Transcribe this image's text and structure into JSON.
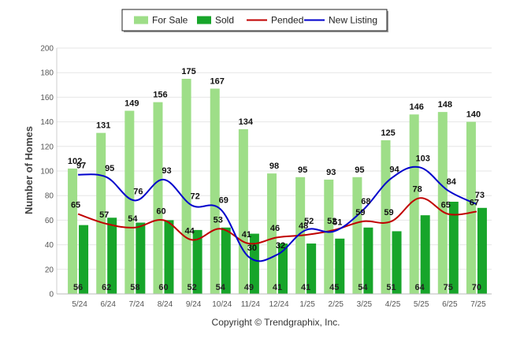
{
  "chart_data": {
    "type": "bar",
    "ylabel": "Number of Homes",
    "ylim": [
      0,
      200
    ],
    "yticks": [
      0,
      20,
      40,
      60,
      80,
      100,
      120,
      140,
      160,
      180,
      200
    ],
    "categories": [
      "5/24",
      "6/24",
      "7/24",
      "8/24",
      "9/24",
      "10/24",
      "11/24",
      "12/24",
      "1/25",
      "2/25",
      "3/25",
      "4/25",
      "5/25",
      "6/25",
      "7/25"
    ],
    "legend": {
      "placement": "top",
      "items": [
        {
          "label": "For Sale",
          "kind": "bar"
        },
        {
          "label": "Sold",
          "kind": "bar"
        },
        {
          "label": "Pended",
          "kind": "line"
        },
        {
          "label": "New Listing",
          "kind": "line"
        }
      ]
    },
    "series": [
      {
        "name": "For Sale",
        "kind": "bar",
        "color": "#9ede88",
        "values": [
          102,
          131,
          149,
          156,
          175,
          167,
          134,
          98,
          95,
          93,
          95,
          125,
          146,
          148,
          140
        ]
      },
      {
        "name": "Sold",
        "kind": "bar",
        "color": "#17a52a",
        "values": [
          56,
          62,
          58,
          60,
          52,
          54,
          49,
          41,
          41,
          45,
          54,
          51,
          64,
          75,
          70
        ]
      },
      {
        "name": "Pended",
        "kind": "line",
        "color": "#c00000",
        "values": [
          65,
          57,
          54,
          60,
          44,
          53,
          41,
          46,
          48,
          52,
          59,
          59,
          78,
          65,
          67
        ]
      },
      {
        "name": "New Listing",
        "kind": "line",
        "color": "#0000cc",
        "values": [
          97,
          95,
          76,
          93,
          72,
          69,
          30,
          32,
          52,
          51,
          68,
          94,
          103,
          84,
          73
        ]
      }
    ],
    "grid": true
  },
  "footer": {
    "copyright": "Copyright © Trendgraphix, Inc."
  }
}
